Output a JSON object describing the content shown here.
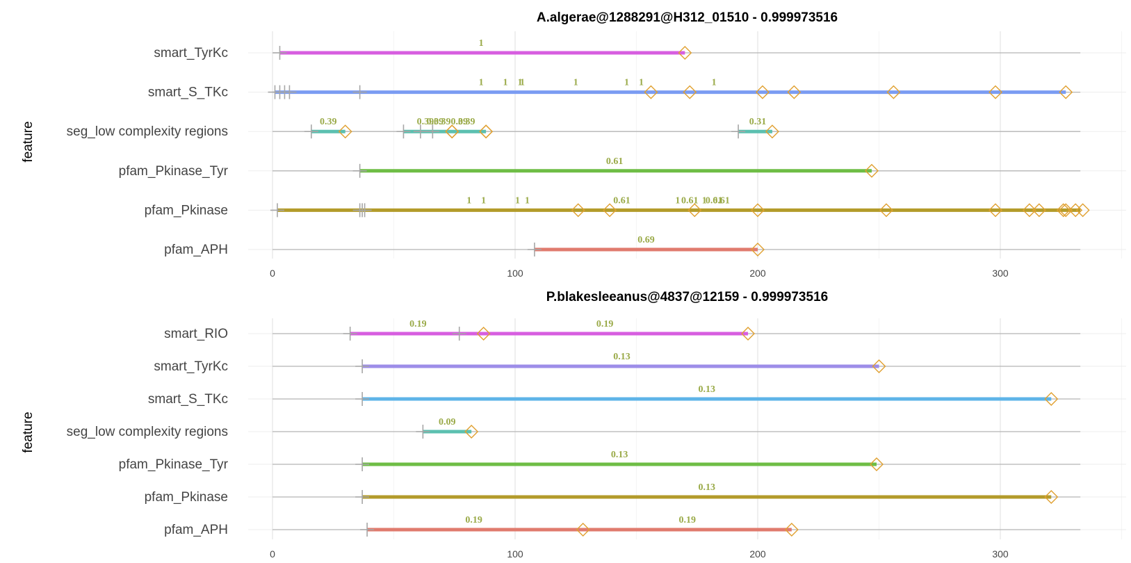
{
  "chart_data": [
    {
      "type": "domain-track",
      "title": "A.algerae@1288291@H312_01510 - 0.999973516",
      "ylabel": "feature",
      "xlabel": "",
      "xlim": [
        0,
        350
      ],
      "xticks": [
        0,
        100,
        200,
        300
      ],
      "protein_length": 333,
      "grid": true,
      "label_color": "#9aaa48",
      "features": [
        {
          "name": "pfam_APH",
          "color": "#e07b6e",
          "segments": [
            [
              108,
              200
            ]
          ],
          "start_marks": [
            108
          ],
          "end_marks": [
            200
          ],
          "labels": [
            {
              "x": 154,
              "text": "0.69"
            }
          ]
        },
        {
          "name": "pfam_Pkinase",
          "color": "#b39b2a",
          "segments": [
            [
              2,
              333
            ]
          ],
          "start_marks": [
            2,
            36,
            37,
            38
          ],
          "end_marks": [
            126,
            139,
            174,
            200,
            253,
            298,
            312,
            316,
            326,
            327,
            331,
            334
          ],
          "labels": [
            {
              "x": 81,
              "text": "1"
            },
            {
              "x": 87,
              "text": "1"
            },
            {
              "x": 101,
              "text": "1"
            },
            {
              "x": 105,
              "text": "1"
            },
            {
              "x": 144,
              "text": "0.61"
            },
            {
              "x": 167,
              "text": "1"
            },
            {
              "x": 172,
              "text": "0.61"
            },
            {
              "x": 178,
              "text": "1"
            },
            {
              "x": 182,
              "text": "0.61"
            },
            {
              "x": 185,
              "text": "0.61"
            }
          ]
        },
        {
          "name": "pfam_Pkinase_Tyr",
          "color": "#6ebd45",
          "segments": [
            [
              36,
              247
            ]
          ],
          "start_marks": [
            36
          ],
          "end_marks": [
            247
          ],
          "labels": [
            {
              "x": 141,
              "text": "0.61"
            }
          ]
        },
        {
          "name": "seg_low complexity regions",
          "color": "#5cc0b0",
          "segments": [
            [
              16,
              30
            ],
            [
              54,
              88
            ],
            [
              192,
              206
            ]
          ],
          "start_marks": [
            16,
            54,
            61,
            66,
            192
          ],
          "end_marks": [
            30,
            74,
            74,
            88,
            88,
            206
          ],
          "labels": [
            {
              "x": 23,
              "text": "0.39"
            },
            {
              "x": 63,
              "text": "0.39"
            },
            {
              "x": 67,
              "text": "0.39"
            },
            {
              "x": 70,
              "text": "0.39"
            },
            {
              "x": 77,
              "text": "0.39"
            },
            {
              "x": 80,
              "text": "0.39"
            },
            {
              "x": 200,
              "text": "0.31"
            }
          ]
        },
        {
          "name": "smart_S_TKc",
          "color": "#7b9cf2",
          "segments": [
            [
              1,
              327
            ]
          ],
          "start_marks": [
            1,
            3,
            5,
            7,
            36
          ],
          "end_marks": [
            156,
            172,
            202,
            215,
            256,
            298,
            327
          ],
          "labels": [
            {
              "x": 86,
              "text": "1"
            },
            {
              "x": 96,
              "text": "1"
            },
            {
              "x": 102,
              "text": "1"
            },
            {
              "x": 103,
              "text": "1"
            },
            {
              "x": 125,
              "text": "1"
            },
            {
              "x": 146,
              "text": "1"
            },
            {
              "x": 152,
              "text": "1"
            },
            {
              "x": 182,
              "text": "1"
            }
          ]
        },
        {
          "name": "smart_TyrKc",
          "color": "#d75ee0",
          "segments": [
            [
              3,
              170
            ]
          ],
          "start_marks": [
            3
          ],
          "end_marks": [
            170
          ],
          "labels": [
            {
              "x": 86,
              "text": "1"
            }
          ]
        }
      ]
    },
    {
      "type": "domain-track",
      "title": "P.blakesleeanus@4837@12159 - 0.999973516",
      "ylabel": "feature",
      "xlabel": "",
      "xlim": [
        0,
        350
      ],
      "xticks": [
        0,
        100,
        200,
        300
      ],
      "protein_length": 333,
      "grid": true,
      "label_color": "#9aaa48",
      "features": [
        {
          "name": "pfam_APH",
          "color": "#e07b6e",
          "segments": [
            [
              39,
              214
            ]
          ],
          "start_marks": [
            39
          ],
          "end_marks": [
            128,
            214
          ],
          "labels": [
            {
              "x": 83,
              "text": "0.19"
            },
            {
              "x": 171,
              "text": "0.19"
            }
          ]
        },
        {
          "name": "pfam_Pkinase",
          "color": "#b39b2a",
          "segments": [
            [
              37,
              321
            ]
          ],
          "start_marks": [
            37
          ],
          "end_marks": [
            321
          ],
          "labels": [
            {
              "x": 179,
              "text": "0.13"
            }
          ]
        },
        {
          "name": "pfam_Pkinase_Tyr",
          "color": "#6ebd45",
          "segments": [
            [
              37,
              249
            ]
          ],
          "start_marks": [
            37
          ],
          "end_marks": [
            249
          ],
          "labels": [
            {
              "x": 143,
              "text": "0.13"
            }
          ]
        },
        {
          "name": "seg_low complexity regions",
          "color": "#5cc0b0",
          "segments": [
            [
              62,
              82
            ]
          ],
          "start_marks": [
            62
          ],
          "end_marks": [
            82
          ],
          "labels": [
            {
              "x": 72,
              "text": "0.09"
            }
          ]
        },
        {
          "name": "smart_S_TKc",
          "color": "#5eb4e8",
          "segments": [
            [
              37,
              321
            ]
          ],
          "start_marks": [
            37
          ],
          "end_marks": [
            321
          ],
          "labels": [
            {
              "x": 179,
              "text": "0.13"
            }
          ]
        },
        {
          "name": "smart_TyrKc",
          "color": "#9d8de8",
          "segments": [
            [
              37,
              250
            ]
          ],
          "start_marks": [
            37
          ],
          "end_marks": [
            250
          ],
          "labels": [
            {
              "x": 144,
              "text": "0.13"
            }
          ]
        },
        {
          "name": "smart_RIO",
          "color": "#d75ee0",
          "segments": [
            [
              32,
              196
            ]
          ],
          "start_marks": [
            32,
            77
          ],
          "end_marks": [
            87,
            196
          ],
          "labels": [
            {
              "x": 60,
              "text": "0.19"
            },
            {
              "x": 137,
              "text": "0.19"
            }
          ]
        }
      ]
    }
  ]
}
